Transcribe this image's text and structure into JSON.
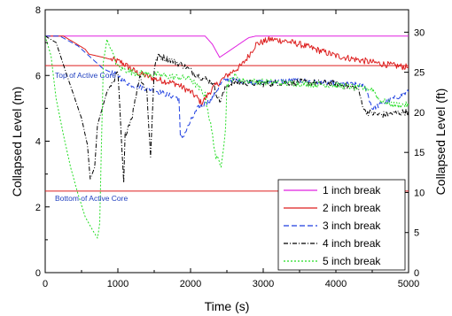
{
  "chart_data": {
    "type": "line",
    "xlabel": "Time (s)",
    "ylabel_left": "Collapsed Level (m)",
    "ylabel_right": "Collapsed Level (ft)",
    "xlim": [
      0,
      5000
    ],
    "ylim_left": [
      0,
      8
    ],
    "ylim_right_ft": [
      0,
      32.8
    ],
    "x_ticks": [
      0,
      1000,
      2000,
      3000,
      4000,
      5000
    ],
    "y_ticks_left": [
      0,
      2,
      4,
      6,
      8
    ],
    "y_ticks_right": [
      0,
      5,
      10,
      15,
      20,
      25,
      30
    ],
    "grid": false,
    "legend_position": "bottom-right",
    "annotations": [
      {
        "text": "Top of Active Core",
        "y": 6.3
      },
      {
        "text": "Bottom of Active Core",
        "y": 2.48
      }
    ],
    "reference_lines": [
      {
        "y": 6.3,
        "color": "#dd1f1f"
      },
      {
        "y": 2.48,
        "color": "#dd1f1f"
      }
    ],
    "series": [
      {
        "name": "1 inch break",
        "color": "#e020e0",
        "dash": "solid",
        "noise": 0,
        "x": [
          0,
          2200,
          2300,
          2400,
          2500,
          2600,
          2700,
          2800,
          2900,
          5000
        ],
        "y": [
          7.2,
          7.2,
          6.95,
          6.55,
          6.7,
          6.85,
          7.0,
          7.15,
          7.2,
          7.2
        ]
      },
      {
        "name": "2 inch break",
        "color": "#dd1f1f",
        "dash": "solid",
        "noise": 0.1,
        "x": [
          0,
          250,
          550,
          600,
          800,
          1050,
          1250,
          1500,
          1800,
          2000,
          2100,
          2150,
          2200,
          2300,
          2400,
          2500,
          2600,
          2700,
          2800,
          2900,
          3100,
          3300,
          3500,
          4000,
          4500,
          4800,
          5000
        ],
        "y": [
          7.2,
          7.2,
          6.8,
          6.65,
          6.55,
          6.4,
          6.1,
          5.9,
          5.75,
          5.5,
          5.3,
          5.15,
          5.3,
          5.6,
          5.8,
          6.0,
          6.15,
          6.3,
          6.6,
          6.95,
          7.1,
          7.05,
          6.95,
          6.6,
          6.4,
          6.3,
          6.25
        ]
      },
      {
        "name": "3 inch break",
        "color": "#1f3fe0",
        "dash": "6,3",
        "noise": 0.08,
        "x": [
          0,
          200,
          450,
          700,
          800,
          900,
          1000,
          1050,
          1100,
          1200,
          1300,
          1500,
          1700,
          1840,
          1860,
          1900,
          2000,
          2100,
          2300,
          2400,
          2500,
          2600,
          2800,
          3000,
          3500,
          4000,
          4400,
          4500,
          4700,
          5000
        ],
        "y": [
          7.2,
          7.2,
          6.9,
          6.4,
          6.2,
          6.1,
          6.0,
          5.9,
          5.8,
          5.7,
          5.65,
          5.55,
          5.4,
          5.3,
          4.1,
          4.15,
          4.6,
          5.0,
          5.3,
          5.7,
          5.9,
          5.85,
          5.8,
          5.8,
          5.85,
          5.75,
          5.7,
          5.0,
          5.2,
          5.5
        ]
      },
      {
        "name": "4 inch break",
        "color": "#000000",
        "dash": "5,2,1,2",
        "noise": 0.1,
        "x": [
          0,
          150,
          300,
          500,
          580,
          620,
          680,
          720,
          850,
          1000,
          1080,
          1100,
          1200,
          1300,
          1400,
          1450,
          1500,
          1550,
          1700,
          1900,
          2100,
          2300,
          2400,
          2500,
          2600,
          3000,
          3500,
          4000,
          4300,
          4400,
          4600,
          4800,
          5000
        ],
        "y": [
          7.2,
          7.0,
          6.0,
          4.7,
          3.9,
          2.85,
          3.2,
          4.5,
          5.5,
          6.1,
          2.7,
          4.2,
          4.8,
          6.0,
          5.5,
          3.5,
          6.2,
          6.6,
          6.5,
          6.3,
          6.0,
          5.8,
          5.2,
          5.7,
          5.8,
          5.75,
          5.8,
          5.75,
          5.6,
          4.9,
          4.8,
          4.85,
          4.9
        ]
      },
      {
        "name": "5 inch break",
        "color": "#22dd22",
        "dash": "2,2",
        "noise": 0.1,
        "x": [
          0,
          80,
          150,
          250,
          350,
          450,
          550,
          650,
          720,
          750,
          800,
          850,
          900,
          1000,
          1200,
          1400,
          1600,
          1800,
          2000,
          2200,
          2300,
          2350,
          2420,
          2480,
          2500,
          2600,
          2700,
          3000,
          3500,
          4000,
          4400,
          4500,
          4600,
          4800,
          5000
        ],
        "y": [
          7.2,
          6.6,
          5.3,
          4.2,
          3.2,
          2.4,
          1.7,
          1.3,
          1.05,
          1.5,
          6.4,
          7.1,
          6.8,
          6.25,
          6.1,
          6.05,
          6.0,
          5.95,
          5.9,
          5.4,
          4.2,
          3.5,
          3.3,
          4.3,
          5.7,
          6.0,
          5.85,
          5.8,
          5.75,
          5.7,
          5.6,
          5.6,
          5.25,
          5.1,
          5.1
        ]
      }
    ]
  }
}
